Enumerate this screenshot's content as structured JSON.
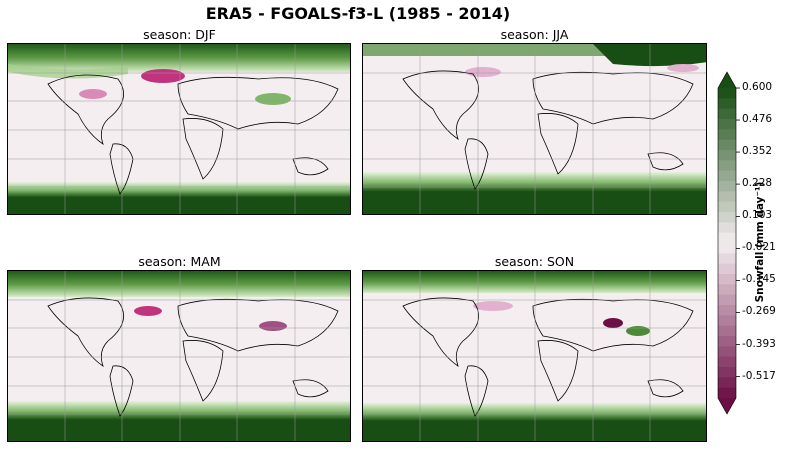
{
  "figure": {
    "title": "ERA5 - FGOALS-f3-L (1985 - 2014)"
  },
  "panels": [
    {
      "id": "djf",
      "title": "season: DJF"
    },
    {
      "id": "jja",
      "title": "season: JJA"
    },
    {
      "id": "mam",
      "title": "season: MAM"
    },
    {
      "id": "son",
      "title": "season: SON"
    }
  ],
  "colorbar": {
    "label": "Snowfall (mm day⁻¹)",
    "ticks": [
      "0.600",
      "0.476",
      "0.352",
      "0.228",
      "0.103",
      "-0.021",
      "-0.145",
      "-0.269",
      "-0.393",
      "-0.517"
    ],
    "tick_values": [
      0.6,
      0.476,
      0.352,
      0.228,
      0.103,
      -0.021,
      -0.145,
      -0.269,
      -0.393,
      -0.517
    ],
    "min": -0.6,
    "max": 0.6,
    "extend": "both",
    "colormap": "PiYG",
    "color_low": "#6b0f45",
    "color_mid": "#f5eef0",
    "color_high": "#184d13"
  }
}
